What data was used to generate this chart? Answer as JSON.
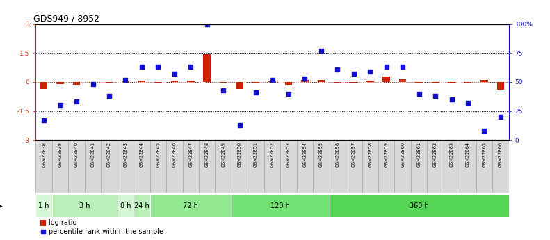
{
  "title": "GDS949 / 8952",
  "samples": [
    "GSM22838",
    "GSM22839",
    "GSM22840",
    "GSM22841",
    "GSM22842",
    "GSM22843",
    "GSM22844",
    "GSM22845",
    "GSM22846",
    "GSM22847",
    "GSM22848",
    "GSM22849",
    "GSM22850",
    "GSM22851",
    "GSM22852",
    "GSM22853",
    "GSM22854",
    "GSM22855",
    "GSM22856",
    "GSM22857",
    "GSM22858",
    "GSM22859",
    "GSM22860",
    "GSM22861",
    "GSM22862",
    "GSM22863",
    "GSM22864",
    "GSM22865",
    "GSM22866"
  ],
  "log_ratio": [
    -0.35,
    -0.1,
    -0.15,
    0.0,
    -0.05,
    0.05,
    0.08,
    -0.05,
    0.08,
    0.06,
    1.45,
    -0.05,
    -0.35,
    -0.08,
    0.05,
    -0.15,
    0.12,
    0.1,
    -0.05,
    -0.05,
    0.08,
    0.3,
    0.15,
    -0.06,
    -0.08,
    -0.08,
    -0.07,
    0.12,
    -0.38
  ],
  "percentile_rank_pct": [
    17,
    30,
    33,
    48,
    38,
    52,
    63,
    63,
    57,
    63,
    100,
    43,
    13,
    41,
    52,
    40,
    53,
    77,
    61,
    57,
    59,
    63,
    63,
    40,
    38,
    35,
    32,
    8,
    20
  ],
  "time_groups": [
    {
      "label": "1 h",
      "start": 0,
      "end": 1,
      "color": "#d4f7d4"
    },
    {
      "label": "3 h",
      "start": 1,
      "end": 5,
      "color": "#b8f0b8"
    },
    {
      "label": "8 h",
      "start": 5,
      "end": 6,
      "color": "#d4f7d4"
    },
    {
      "label": "24 h",
      "start": 6,
      "end": 7,
      "color": "#b8f0b8"
    },
    {
      "label": "72 h",
      "start": 7,
      "end": 12,
      "color": "#90e890"
    },
    {
      "label": "120 h",
      "start": 12,
      "end": 18,
      "color": "#70e070"
    },
    {
      "label": "360 h",
      "start": 18,
      "end": 29,
      "color": "#55d455"
    }
  ],
  "ylim_left": [
    -3,
    3
  ],
  "ylim_right": [
    0,
    100
  ],
  "bar_color": "#cc2200",
  "dot_color": "#1111cc",
  "background_color": "#ffffff",
  "label_bg_color": "#d8d8d8",
  "label_border_color": "#aaaaaa",
  "plot_area_bg": "#ffffff"
}
